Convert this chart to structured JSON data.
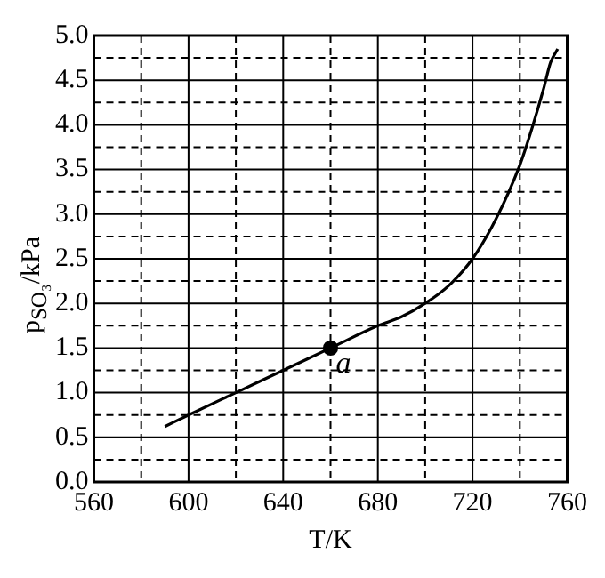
{
  "chart_data": {
    "type": "line",
    "xlabel": "T/K",
    "ylabel": "p$_{SO₃}$/kPa",
    "xlim": [
      560,
      760
    ],
    "xticks": [
      560,
      {
        "value": 580,
        "label": null
      },
      600,
      {
        "value": 620,
        "label": null
      },
      640,
      {
        "value": 660,
        "label": null
      },
      680,
      {
        "value": 700,
        "label": null
      },
      720,
      {
        "value": 740,
        "label": null
      },
      760
    ],
    "ylim": [
      0,
      5
    ],
    "yticks": [
      {
        "value": 0,
        "label": "0.0"
      },
      {
        "value": 0.25,
        "label": null
      },
      0.5,
      {
        "value": 0.75,
        "label": null
      },
      {
        "value": 1,
        "label": "1.0"
      },
      {
        "value": 1.25,
        "label": null
      },
      1.5,
      {
        "value": 1.75,
        "label": null
      },
      {
        "value": 2,
        "label": "2.0"
      },
      {
        "value": 2.25,
        "label": null
      },
      2.5,
      {
        "value": 2.75,
        "label": null
      },
      {
        "value": 3,
        "label": "3.0"
      },
      {
        "value": 3.25,
        "label": null
      },
      3.5,
      {
        "value": 3.75,
        "label": null
      },
      {
        "value": 4,
        "label": "4.0"
      },
      {
        "value": 4.25,
        "label": null
      },
      4.5,
      {
        "value": 4.75,
        "label": null
      },
      {
        "value": 5,
        "label": "5.0"
      }
    ],
    "grid": true,
    "legend": false,
    "series": [
      {
        "type": "line",
        "color": "#000000",
        "marker": "none",
        "x": [
          590,
          600,
          620,
          640,
          660,
          680,
          690,
          700,
          710,
          720,
          730,
          740,
          745,
          750,
          753,
          756
        ],
        "values": [
          0.62,
          0.75,
          1.0,
          1.25,
          1.5,
          1.75,
          1.85,
          2.0,
          2.2,
          2.5,
          2.95,
          3.55,
          3.95,
          4.4,
          4.7,
          4.85
        ]
      },
      {
        "type": "scatter",
        "color": "#000000",
        "marker": "circle",
        "x": [
          660
        ],
        "values": [
          1.5
        ]
      }
    ],
    "annotations": [
      {
        "text": "a",
        "x": 660,
        "y": 1.5
      }
    ]
  }
}
